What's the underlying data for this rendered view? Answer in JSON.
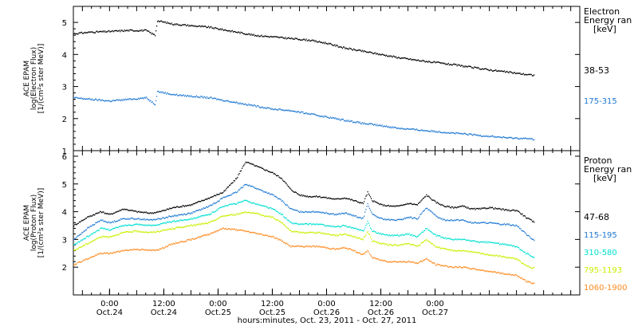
{
  "chart_data": [
    {
      "type": "scatter",
      "panel": "electron",
      "ylabel_lines": [
        "ACE EPAM",
        "log(Electron Flux)",
        "[1/(cm²s ster MeV)]"
      ],
      "legend_title": [
        "Electron",
        "Energy ran",
        "[keV]"
      ],
      "ylim": [
        1.0,
        5.5
      ],
      "yticks": [
        "1",
        "2",
        "3",
        "4",
        "5"
      ],
      "yticks_values": [
        1,
        2,
        3,
        4,
        5
      ],
      "xlim_hours": [
        -8,
        104
      ],
      "series": [
        {
          "name": "38-53",
          "color": "#000000",
          "x": [
            -8,
            -4,
            0,
            4,
            8,
            10,
            10.5,
            14,
            18,
            22,
            24,
            28,
            32,
            36,
            40,
            44,
            48,
            52,
            56,
            60,
            64,
            68,
            72,
            76,
            80,
            84,
            88,
            92,
            94
          ],
          "y": [
            4.65,
            4.7,
            4.72,
            4.75,
            4.75,
            4.6,
            5.05,
            4.95,
            4.9,
            4.85,
            4.8,
            4.7,
            4.6,
            4.55,
            4.5,
            4.45,
            4.35,
            4.2,
            4.1,
            4.0,
            3.9,
            3.82,
            3.75,
            3.68,
            3.6,
            3.52,
            3.45,
            3.38,
            3.35
          ]
        },
        {
          "name": "175-315",
          "color": "#1e78d2",
          "x": [
            -8,
            -4,
            0,
            4,
            8,
            10,
            10.5,
            14,
            18,
            22,
            24,
            28,
            32,
            36,
            40,
            44,
            48,
            52,
            56,
            60,
            64,
            68,
            72,
            76,
            80,
            84,
            88,
            92,
            94
          ],
          "y": [
            2.65,
            2.6,
            2.55,
            2.6,
            2.65,
            2.45,
            2.85,
            2.75,
            2.7,
            2.65,
            2.6,
            2.5,
            2.4,
            2.3,
            2.25,
            2.15,
            2.05,
            1.95,
            1.85,
            1.78,
            1.7,
            1.65,
            1.6,
            1.55,
            1.5,
            1.45,
            1.4,
            1.38,
            1.35
          ]
        }
      ]
    },
    {
      "type": "scatter",
      "panel": "proton",
      "ylabel_lines": [
        "ACE EPAM",
        "log(Proton Flux)",
        "[1/(cm²s ster MeV)]"
      ],
      "legend_title": [
        "Proton",
        "Energy ran",
        "[keV]"
      ],
      "ylim": [
        1.0,
        6.2
      ],
      "yticks": [
        "2",
        "3",
        "4",
        "5",
        "6"
      ],
      "yticks_values": [
        2,
        3,
        4,
        5,
        6
      ],
      "xlim_hours": [
        -8,
        104
      ],
      "series": [
        {
          "name": "47-68",
          "color": "#000000",
          "x": [
            -8,
            -5,
            -2,
            0,
            3,
            6,
            9,
            11,
            14,
            18,
            22,
            25,
            28,
            30,
            33,
            36,
            38,
            40,
            42,
            44,
            46,
            48,
            50,
            52,
            54,
            56,
            57,
            58,
            60,
            62,
            64,
            66,
            68,
            70,
            72,
            74,
            76,
            78,
            80,
            82,
            84,
            86,
            88,
            90,
            92,
            94
          ],
          "y": [
            3.5,
            3.8,
            4.0,
            3.9,
            4.1,
            4.0,
            3.95,
            4.0,
            4.15,
            4.25,
            4.5,
            4.7,
            5.2,
            5.8,
            5.6,
            5.4,
            5.2,
            4.8,
            4.6,
            4.55,
            4.55,
            4.5,
            4.45,
            4.5,
            4.4,
            4.3,
            4.7,
            4.4,
            4.25,
            4.2,
            4.2,
            4.3,
            4.25,
            4.6,
            4.35,
            4.2,
            4.15,
            4.2,
            4.1,
            4.1,
            4.15,
            4.1,
            4.05,
            4.05,
            3.8,
            3.6
          ]
        },
        {
          "name": "115-195",
          "color": "#1e78d2",
          "x": [
            -8,
            -5,
            -2,
            0,
            3,
            6,
            9,
            11,
            14,
            18,
            22,
            25,
            28,
            30,
            33,
            36,
            38,
            40,
            42,
            44,
            46,
            48,
            50,
            52,
            54,
            56,
            57,
            58,
            60,
            62,
            64,
            66,
            68,
            70,
            72,
            74,
            76,
            78,
            80,
            82,
            84,
            86,
            88,
            90,
            92,
            94
          ],
          "y": [
            3.0,
            3.4,
            3.7,
            3.6,
            3.75,
            3.75,
            3.7,
            3.75,
            3.85,
            3.95,
            4.2,
            4.5,
            4.7,
            5.0,
            4.8,
            4.6,
            4.4,
            4.1,
            4.0,
            4.0,
            4.0,
            3.95,
            3.9,
            3.95,
            3.85,
            3.75,
            4.3,
            3.9,
            3.75,
            3.7,
            3.7,
            3.8,
            3.75,
            4.15,
            3.85,
            3.7,
            3.7,
            3.7,
            3.6,
            3.6,
            3.6,
            3.55,
            3.55,
            3.5,
            3.2,
            2.95
          ]
        },
        {
          "name": "310-580",
          "color": "#00e0d0",
          "x": [
            -8,
            -5,
            -2,
            0,
            3,
            6,
            9,
            11,
            14,
            18,
            22,
            25,
            28,
            30,
            33,
            36,
            38,
            40,
            42,
            44,
            46,
            48,
            50,
            52,
            54,
            56,
            57,
            58,
            60,
            62,
            64,
            66,
            68,
            70,
            72,
            74,
            76,
            78,
            80,
            82,
            84,
            86,
            88,
            90,
            92,
            94
          ],
          "y": [
            2.8,
            3.1,
            3.4,
            3.35,
            3.5,
            3.55,
            3.5,
            3.55,
            3.65,
            3.75,
            3.9,
            4.2,
            4.3,
            4.4,
            4.25,
            4.1,
            3.9,
            3.6,
            3.55,
            3.55,
            3.55,
            3.5,
            3.45,
            3.5,
            3.4,
            3.3,
            3.65,
            3.3,
            3.2,
            3.15,
            3.15,
            3.2,
            3.1,
            3.4,
            3.15,
            3.05,
            3.0,
            3.0,
            2.95,
            2.9,
            2.9,
            2.85,
            2.8,
            2.75,
            2.5,
            2.35
          ]
        },
        {
          "name": "795-1193",
          "color": "#ccee00",
          "x": [
            -8,
            -5,
            -2,
            0,
            3,
            6,
            9,
            11,
            14,
            18,
            22,
            25,
            28,
            30,
            33,
            36,
            38,
            40,
            42,
            44,
            46,
            48,
            50,
            52,
            54,
            56,
            57,
            58,
            60,
            62,
            64,
            66,
            68,
            70,
            72,
            74,
            76,
            78,
            80,
            82,
            84,
            86,
            88,
            90,
            92,
            94
          ],
          "y": [
            2.6,
            2.85,
            3.1,
            3.1,
            3.25,
            3.3,
            3.25,
            3.3,
            3.4,
            3.5,
            3.6,
            3.85,
            3.9,
            4.0,
            3.9,
            3.8,
            3.6,
            3.3,
            3.25,
            3.25,
            3.25,
            3.2,
            3.15,
            3.2,
            3.1,
            3.0,
            3.3,
            2.95,
            2.85,
            2.8,
            2.8,
            2.85,
            2.75,
            3.0,
            2.75,
            2.65,
            2.6,
            2.6,
            2.55,
            2.5,
            2.45,
            2.4,
            2.35,
            2.3,
            2.05,
            1.95
          ]
        },
        {
          "name": "1060-1900",
          "color": "#ff8a1e",
          "x": [
            -8,
            -5,
            -2,
            0,
            3,
            6,
            9,
            11,
            14,
            18,
            22,
            25,
            28,
            30,
            33,
            36,
            38,
            40,
            42,
            44,
            46,
            48,
            50,
            52,
            54,
            56,
            57,
            58,
            60,
            62,
            64,
            66,
            68,
            70,
            72,
            74,
            76,
            78,
            80,
            82,
            84,
            86,
            88,
            90,
            92,
            94
          ],
          "y": [
            2.1,
            2.3,
            2.5,
            2.5,
            2.6,
            2.65,
            2.6,
            2.65,
            2.85,
            3.0,
            3.2,
            3.4,
            3.35,
            3.3,
            3.2,
            3.1,
            2.95,
            2.75,
            2.75,
            2.75,
            2.75,
            2.7,
            2.65,
            2.7,
            2.6,
            2.45,
            2.6,
            2.35,
            2.25,
            2.2,
            2.2,
            2.2,
            2.15,
            2.3,
            2.1,
            2.05,
            2.0,
            2.0,
            1.95,
            1.9,
            1.85,
            1.8,
            1.75,
            1.7,
            1.5,
            1.4
          ]
        }
      ]
    }
  ],
  "x_axis": {
    "ticks": [
      {
        "hour": 0,
        "time": "0:00",
        "date": "Oct.24"
      },
      {
        "hour": 12,
        "time": "12:00",
        "date": "Oct.24"
      },
      {
        "hour": 24,
        "time": "0:00",
        "date": "Oct.25"
      },
      {
        "hour": 36,
        "time": "12:00",
        "date": "Oct.25"
      },
      {
        "hour": 48,
        "time": "0:00",
        "date": "Oct.26"
      },
      {
        "hour": 60,
        "time": "12:00",
        "date": "Oct.26"
      },
      {
        "hour": 72,
        "time": "0:00",
        "date": "Oct.27"
      }
    ],
    "label": "hours:minutes, Oct. 23, 2011 - Oct. 27, 2011"
  }
}
